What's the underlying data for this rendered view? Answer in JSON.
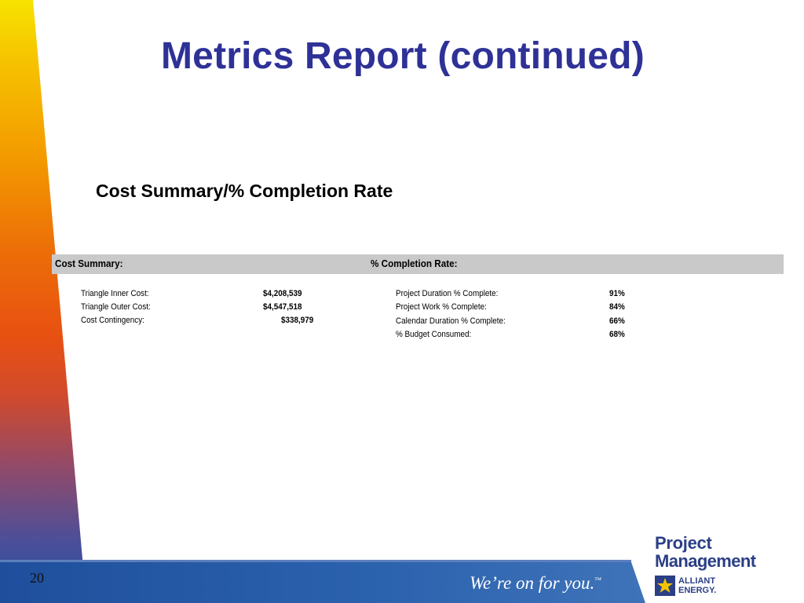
{
  "slide": {
    "title": "Metrics Report (continued)",
    "subtitle": "Cost Summary/% Completion Rate",
    "page_number": "20"
  },
  "table": {
    "left_header": "Cost Summary:",
    "right_header": "% Completion Rate:",
    "left_rows": [
      {
        "label": "Triangle Inner Cost:",
        "value": "$4,208,539"
      },
      {
        "label": "Triangle Outer Cost:",
        "value": "$4,547,518"
      },
      {
        "label": "Cost Contingency:",
        "value": "$338,979"
      }
    ],
    "right_rows": [
      {
        "label": "Project Duration % Complete:",
        "value": "91%"
      },
      {
        "label": "Project Work % Complete:",
        "value": "84%"
      },
      {
        "label": "Calendar Duration % Complete:",
        "value": "66%"
      },
      {
        "label": "% Budget Consumed:",
        "value": "68%"
      }
    ]
  },
  "footer": {
    "tagline": "We’re on for you.",
    "tagline_tm": "™",
    "logo_line1": "Project",
    "logo_line2": "Management",
    "brand_line1": "ALLIANT",
    "brand_line2": "ENERGY."
  },
  "colors": {
    "title": "#2e3196",
    "header_bar": "#c9c9c9",
    "footer_blue": "#2a61ad",
    "logo_blue": "#2b3f86"
  }
}
